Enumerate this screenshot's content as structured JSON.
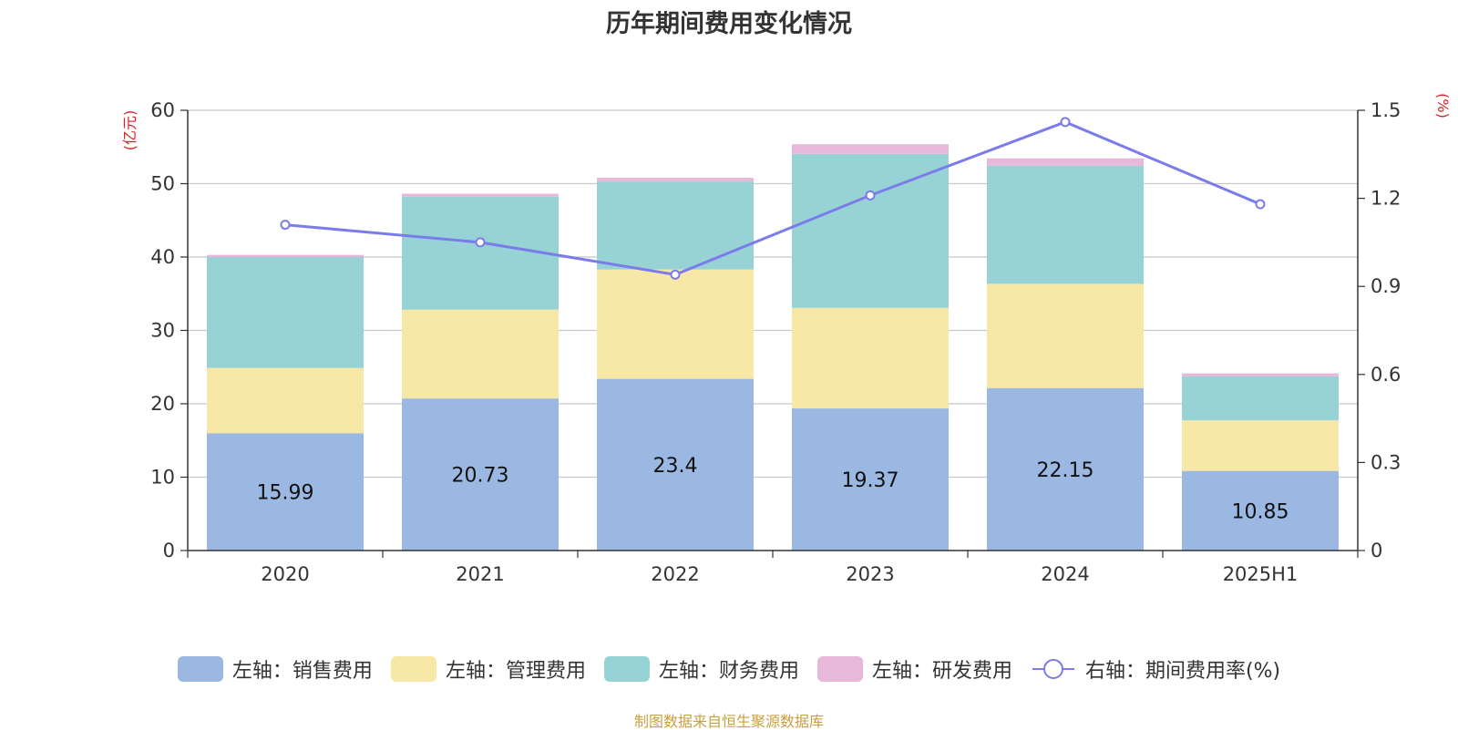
{
  "chart_data": {
    "type": "bar",
    "title": "历年期间费用变化情况",
    "categories": [
      "2020",
      "2021",
      "2022",
      "2023",
      "2024",
      "2025H1"
    ],
    "stacked": true,
    "y_left": {
      "unit": "(亿元)",
      "ylim": [
        0,
        60
      ],
      "ticks": [
        0,
        10,
        20,
        30,
        40,
        50,
        60
      ]
    },
    "y_right": {
      "unit": "(%)",
      "ylim": [
        0,
        1.5
      ],
      "ticks": [
        "0",
        "0.3",
        "0.6",
        "0.9",
        "1.2",
        "1.5"
      ]
    },
    "grid": true,
    "legend_position": "bottom",
    "series": [
      {
        "name": "左轴：销售费用",
        "type": "bar",
        "axis": "left",
        "color": "#9bb8e2",
        "values": [
          15.99,
          20.73,
          23.4,
          19.37,
          22.15,
          10.85
        ],
        "labels": [
          "15.99",
          "20.73",
          "23.4",
          "19.37",
          "22.15",
          "10.85"
        ]
      },
      {
        "name": "左轴：管理费用",
        "type": "bar",
        "axis": "left",
        "color": "#f8e8a8",
        "values": [
          8.9,
          12.1,
          14.9,
          13.7,
          14.2,
          6.9
        ]
      },
      {
        "name": "左轴：财务费用",
        "type": "bar",
        "axis": "left",
        "color": "#97d3d4",
        "values": [
          15.1,
          15.4,
          12.0,
          21.0,
          16.1,
          6.0
        ]
      },
      {
        "name": "左轴：研发费用",
        "type": "bar",
        "axis": "left",
        "color": "#e8b8da",
        "values": [
          0.3,
          0.4,
          0.5,
          1.3,
          1.0,
          0.4
        ]
      },
      {
        "name": "右轴：期间费用率(%)",
        "type": "line",
        "axis": "right",
        "color": "#7b7bec",
        "values": [
          1.11,
          1.05,
          0.94,
          1.21,
          1.46,
          1.18
        ]
      }
    ]
  },
  "source_note": "制图数据来自恒生聚源数据库"
}
